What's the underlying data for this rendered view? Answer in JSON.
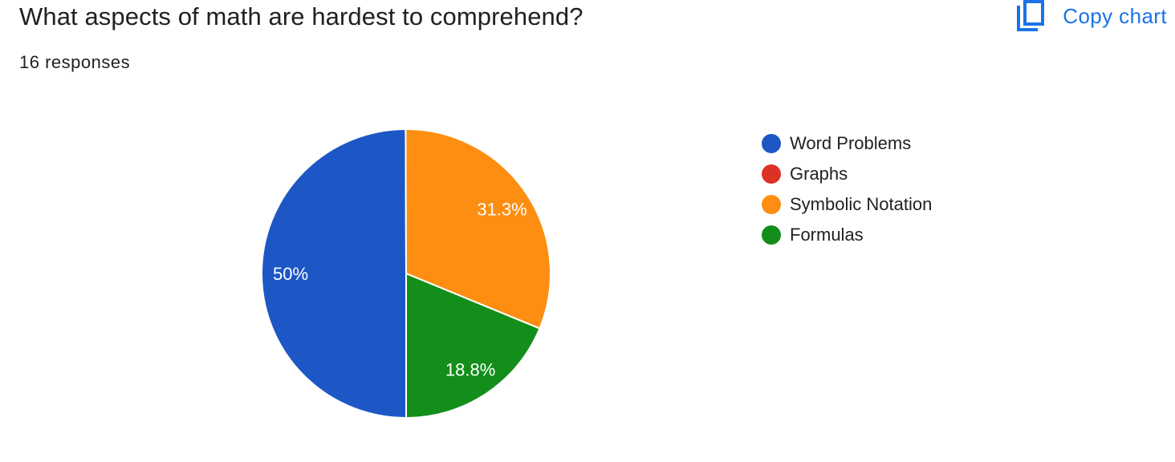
{
  "header": {
    "title": "What aspects of math are hardest to comprehend?",
    "responses": "16 responses",
    "copy_label": "Copy chart",
    "copy_icon": "copy-icon",
    "accent_color": "#1a73e8"
  },
  "chart_data": {
    "type": "pie",
    "title": "What aspects of math are hardest to comprehend?",
    "subtitle": "16 responses",
    "legend_position": "right",
    "categories": [
      "Word Problems",
      "Graphs",
      "Symbolic Notation",
      "Formulas"
    ],
    "values": [
      50,
      0,
      31.3,
      18.8
    ],
    "labels": [
      "50%",
      "",
      "31.3%",
      "18.8%"
    ],
    "colors": [
      "#1d57c6",
      "#dc3226",
      "#fd8e12",
      "#138e1a"
    ]
  }
}
